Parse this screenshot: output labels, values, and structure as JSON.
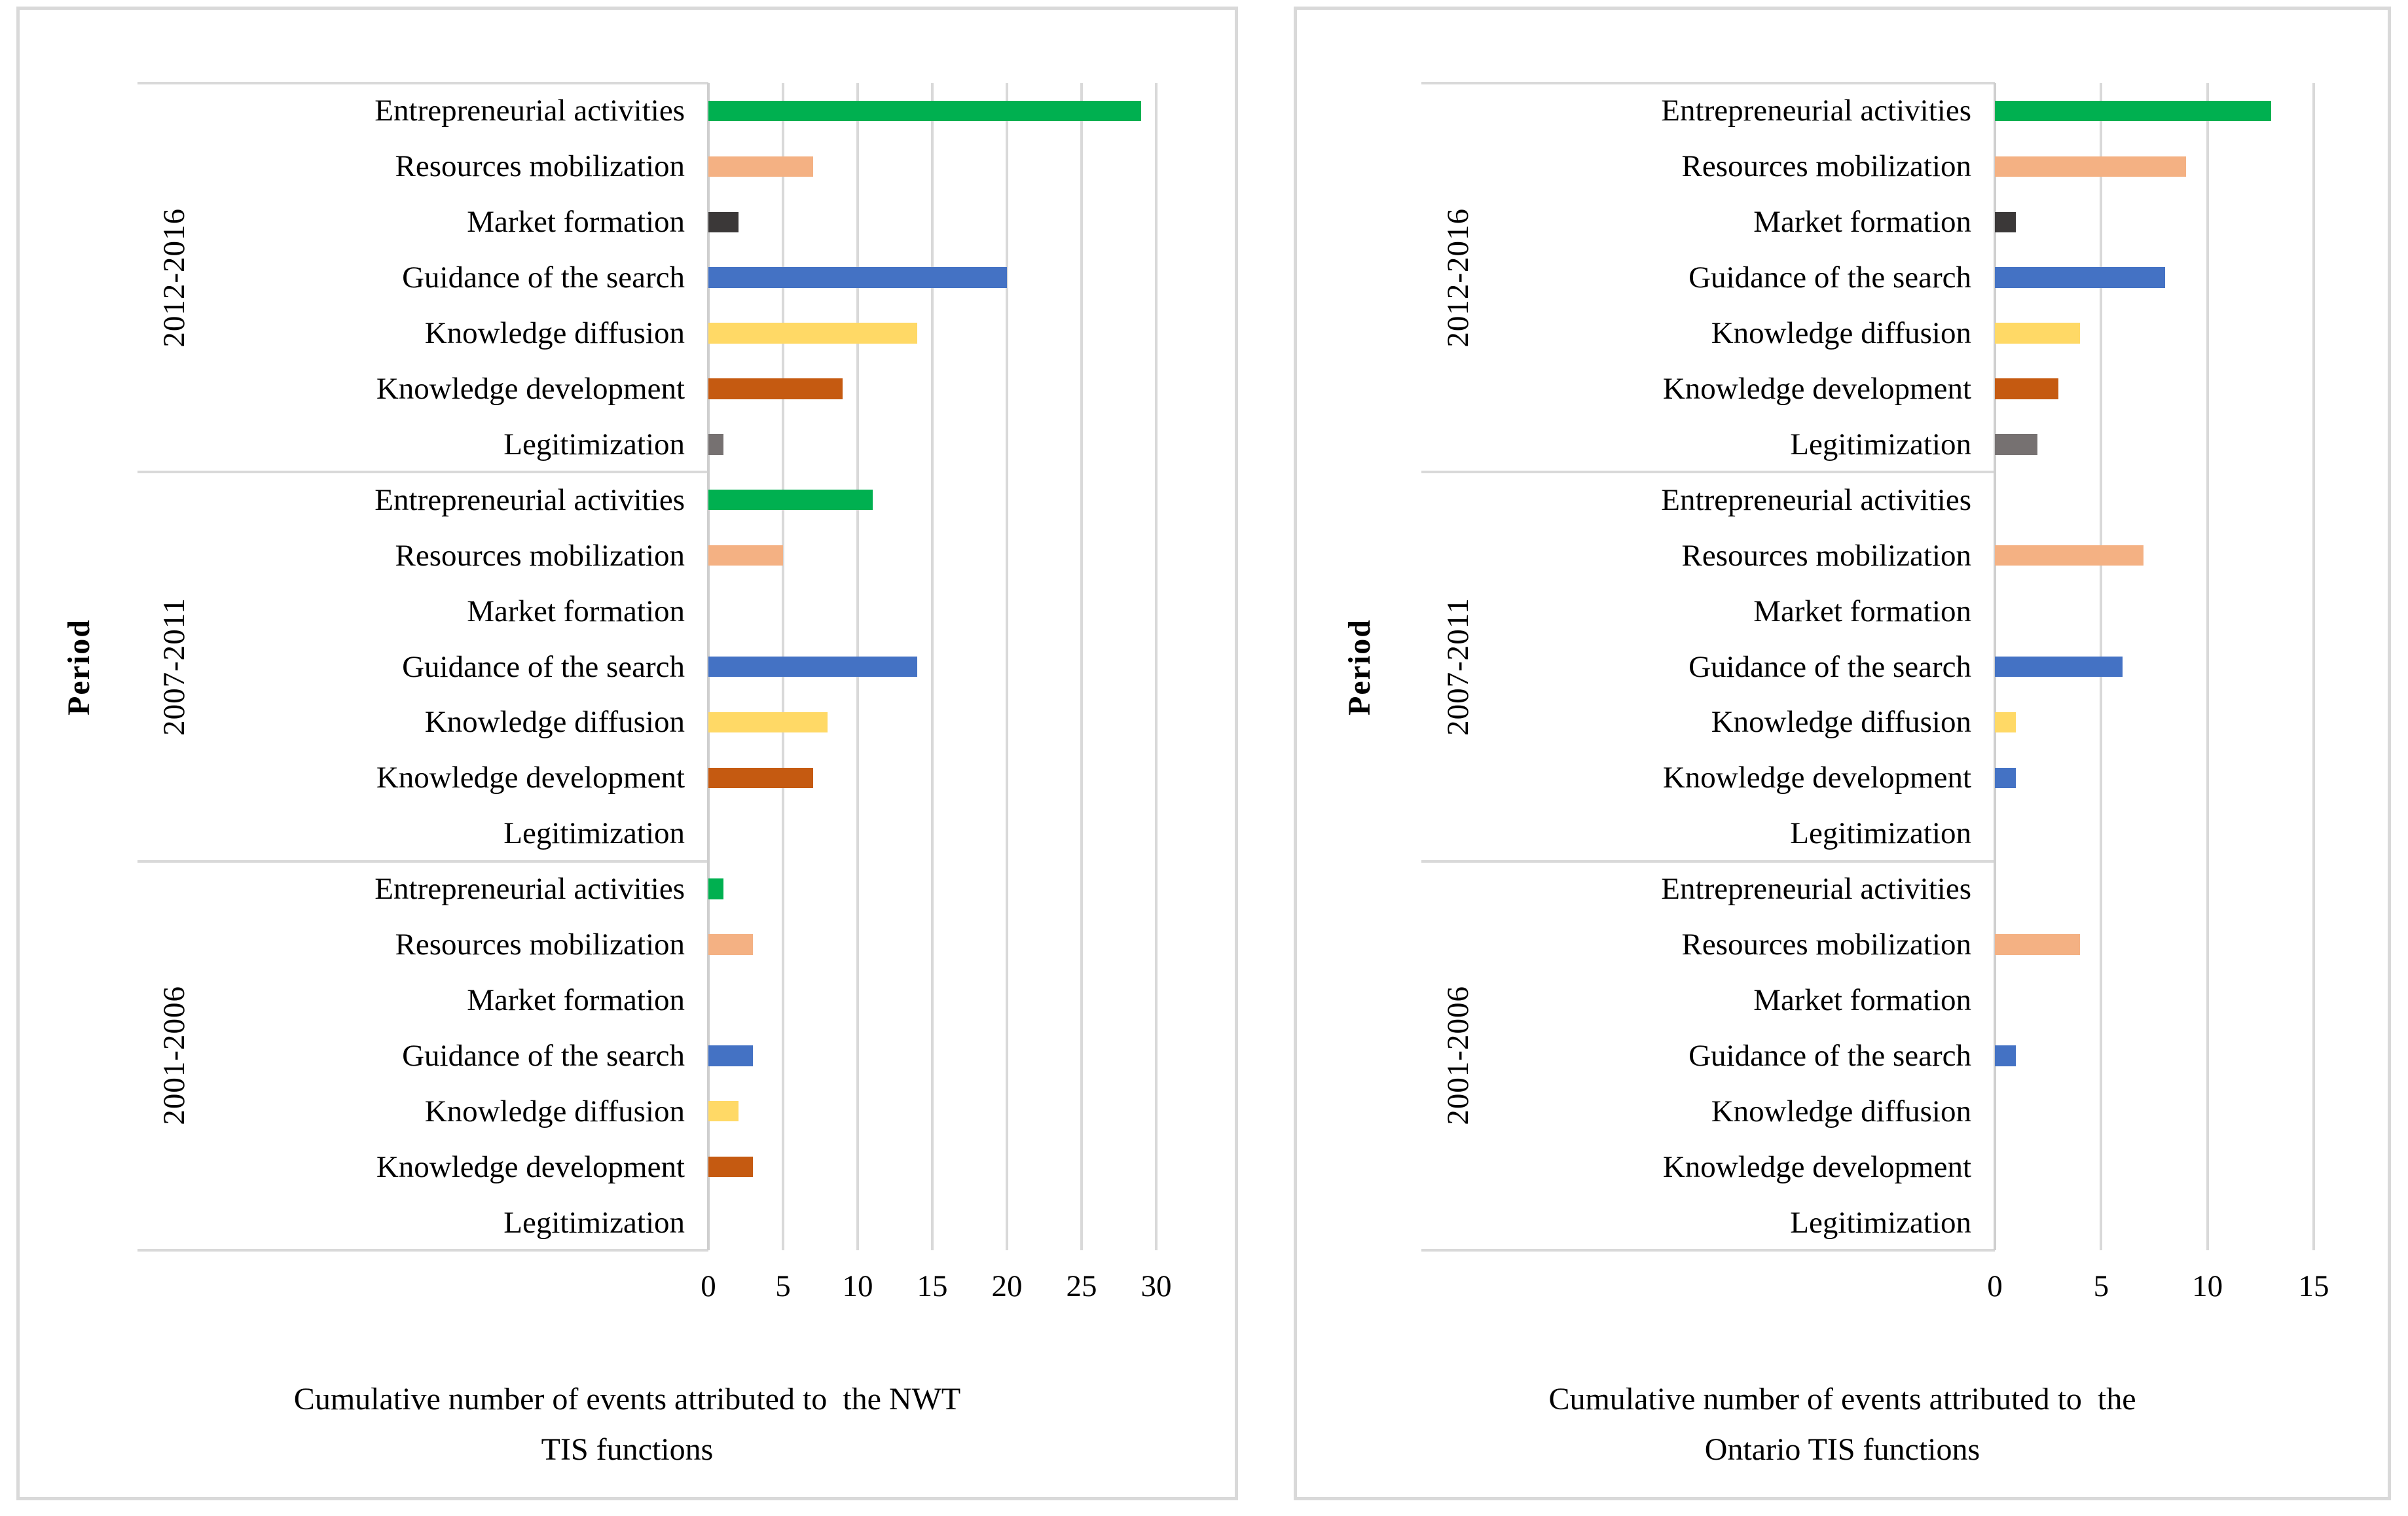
{
  "colors": {
    "green": "#00B050",
    "salmon": "#F4B183",
    "dark": "#3B3838",
    "blue": "#4472C4",
    "yellow": "#FFD966",
    "brown": "#C55A11",
    "gray": "#767171",
    "grid": "#D9D9D9"
  },
  "chart_data": [
    {
      "type": "bar",
      "orientation": "horizontal",
      "title_lines": [
        "Cumulative number of events attributed to  the NWT",
        "TIS functions"
      ],
      "y_axis_title": "Period",
      "x_ticks": [
        0,
        5,
        10,
        15,
        20,
        25,
        30
      ],
      "xlim": [
        0,
        30
      ],
      "grid": "vertical",
      "legend": "none",
      "groups": [
        {
          "period": "2012-2016",
          "rows": [
            {
              "label": "Entrepreneurial activities",
              "value": 29,
              "color": "green"
            },
            {
              "label": "Resources mobilization",
              "value": 7,
              "color": "salmon"
            },
            {
              "label": "Market formation",
              "value": 2,
              "color": "dark"
            },
            {
              "label": "Guidance of the search",
              "value": 20,
              "color": "blue"
            },
            {
              "label": "Knowledge diffusion",
              "value": 14,
              "color": "yellow"
            },
            {
              "label": "Knowledge development",
              "value": 9,
              "color": "brown"
            },
            {
              "label": "Legitimization",
              "value": 1,
              "color": "gray"
            }
          ]
        },
        {
          "period": "2007-2011",
          "rows": [
            {
              "label": "Entrepreneurial activities",
              "value": 11,
              "color": "green"
            },
            {
              "label": "Resources mobilization",
              "value": 5,
              "color": "salmon"
            },
            {
              "label": "Market formation",
              "value": 0,
              "color": "dark"
            },
            {
              "label": "Guidance of the search",
              "value": 14,
              "color": "blue"
            },
            {
              "label": "Knowledge diffusion",
              "value": 8,
              "color": "yellow"
            },
            {
              "label": "Knowledge development",
              "value": 7,
              "color": "brown"
            },
            {
              "label": "Legitimization",
              "value": 0,
              "color": "gray"
            }
          ]
        },
        {
          "period": "2001-2006",
          "rows": [
            {
              "label": "Entrepreneurial activities",
              "value": 1,
              "color": "green"
            },
            {
              "label": "Resources mobilization",
              "value": 3,
              "color": "salmon"
            },
            {
              "label": "Market formation",
              "value": 0,
              "color": "dark"
            },
            {
              "label": "Guidance of the search",
              "value": 3,
              "color": "blue"
            },
            {
              "label": "Knowledge diffusion",
              "value": 2,
              "color": "yellow"
            },
            {
              "label": "Knowledge development",
              "value": 3,
              "color": "brown"
            },
            {
              "label": "Legitimization",
              "value": 0,
              "color": "gray"
            }
          ]
        }
      ]
    },
    {
      "type": "bar",
      "orientation": "horizontal",
      "title_lines": [
        "Cumulative number of events attributed to  the",
        "Ontario TIS functions"
      ],
      "y_axis_title": "Period",
      "x_ticks": [
        0,
        5,
        10,
        15
      ],
      "xlim": [
        0,
        15
      ],
      "grid": "vertical",
      "legend": "none",
      "groups": [
        {
          "period": "2012-2016",
          "rows": [
            {
              "label": "Entrepreneurial activities",
              "value": 13,
              "color": "green"
            },
            {
              "label": "Resources mobilization",
              "value": 9,
              "color": "salmon"
            },
            {
              "label": "Market formation",
              "value": 1,
              "color": "dark"
            },
            {
              "label": "Guidance of the search",
              "value": 8,
              "color": "blue"
            },
            {
              "label": "Knowledge diffusion",
              "value": 4,
              "color": "yellow"
            },
            {
              "label": "Knowledge development",
              "value": 3,
              "color": "brown"
            },
            {
              "label": "Legitimization",
              "value": 2,
              "color": "gray"
            }
          ]
        },
        {
          "period": "2007-2011",
          "rows": [
            {
              "label": "Entrepreneurial activities",
              "value": 0,
              "color": "green"
            },
            {
              "label": "Resources mobilization",
              "value": 7,
              "color": "salmon"
            },
            {
              "label": "Market formation",
              "value": 0,
              "color": "dark"
            },
            {
              "label": "Guidance of the search",
              "value": 6,
              "color": "blue"
            },
            {
              "label": "Knowledge diffusion",
              "value": 1,
              "color": "yellow"
            },
            {
              "label": "Knowledge development",
              "value": 1,
              "color": "blue"
            },
            {
              "label": "Legitimization",
              "value": 0,
              "color": "gray"
            }
          ]
        },
        {
          "period": "2001-2006",
          "rows": [
            {
              "label": "Entrepreneurial activities",
              "value": 0,
              "color": "green"
            },
            {
              "label": "Resources mobilization",
              "value": 4,
              "color": "salmon"
            },
            {
              "label": "Market formation",
              "value": 0,
              "color": "dark"
            },
            {
              "label": "Guidance of the search",
              "value": 1,
              "color": "blue"
            },
            {
              "label": "Knowledge diffusion",
              "value": 0,
              "color": "yellow"
            },
            {
              "label": "Knowledge development",
              "value": 0,
              "color": "brown"
            },
            {
              "label": "Legitimization",
              "value": 0,
              "color": "gray"
            }
          ]
        }
      ]
    }
  ]
}
